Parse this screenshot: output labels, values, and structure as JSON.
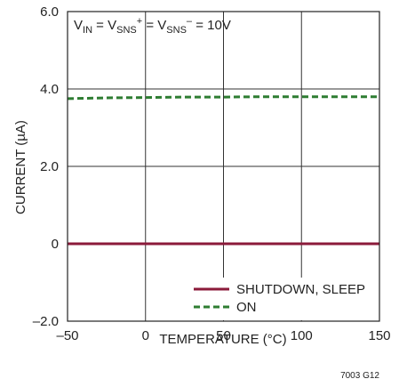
{
  "chart_data": {
    "type": "line",
    "xlabel": "TEMPERATURE (°C)",
    "ylabel": "CURRENT (µA)",
    "xlim": [
      -50,
      150
    ],
    "ylim": [
      -2,
      6
    ],
    "xticks": [
      -50,
      0,
      50,
      100,
      150
    ],
    "xtick_labels": [
      "–50",
      "0",
      "50",
      "100",
      "150"
    ],
    "yticks": [
      -2,
      0,
      2,
      4,
      6
    ],
    "ytick_labels": [
      "–2.0",
      "0",
      "2.0",
      "4.0",
      "6.0"
    ],
    "grid": true,
    "legend_position": "bottom-right",
    "annotation": {
      "v_in": "V",
      "v_in_sub": "IN",
      "eq1": " = V",
      "sns1_sub": "SNS",
      "plus": "+",
      "eq2": " = V",
      "sns2_sub": "SNS",
      "minus": "–",
      "eq3": " = 10V"
    },
    "series": [
      {
        "name": "SHUTDOWN, SLEEP",
        "color": "#8b1a3a",
        "style": "solid",
        "x": [
          -50,
          150
        ],
        "y": [
          0,
          0
        ]
      },
      {
        "name": "ON",
        "color": "#2e7d32",
        "style": "dashed",
        "x": [
          -50,
          -25,
          0,
          25,
          50,
          75,
          100,
          125,
          150
        ],
        "y": [
          3.75,
          3.77,
          3.78,
          3.79,
          3.79,
          3.8,
          3.8,
          3.8,
          3.8
        ]
      }
    ],
    "figure_id": "7003 G12"
  }
}
